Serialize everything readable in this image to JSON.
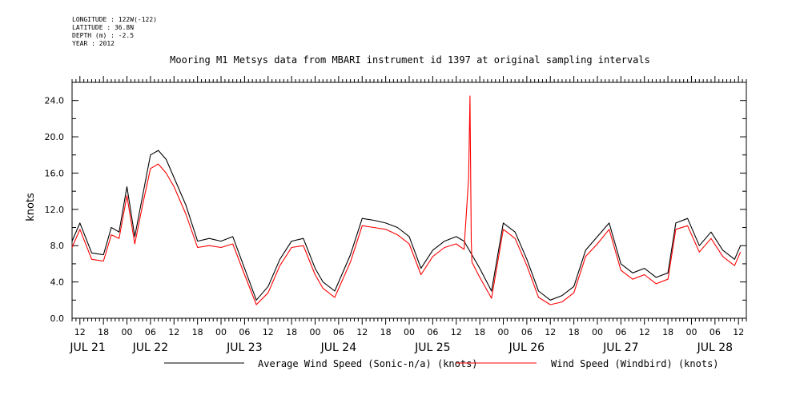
{
  "meta": {
    "longitude": "LONGITUDE : 122W(-122)",
    "latitude": "LATITUDE : 36.8N",
    "depth": "DEPTH (m) : -2.5",
    "year": "YEAR : 2012"
  },
  "colors": {
    "average": "#000000",
    "windbird": "#ff0000"
  },
  "chart_data": {
    "type": "line",
    "title": "Mooring M1 Metsys data from MBARI instrument id 1397 at original sampling intervals",
    "ylabel": "knots",
    "xlabel": "",
    "ylim": [
      0,
      26
    ],
    "xlim": [
      "2012-07-21T10:00",
      "2012-07-28T14:00"
    ],
    "y_ticks": [
      "0.0",
      "4.0",
      "8.0",
      "12.0",
      "16.0",
      "20.0",
      "24.0"
    ],
    "hour_ticks": [
      "12",
      "18",
      "00",
      "06",
      "12",
      "18",
      "00",
      "06",
      "12",
      "18",
      "00",
      "06",
      "12",
      "18",
      "00",
      "06",
      "12",
      "18",
      "00",
      "06",
      "12",
      "18",
      "00",
      "06",
      "12",
      "18",
      "00",
      "06",
      "12"
    ],
    "day_labels": [
      "JUL 21",
      "JUL 22",
      "JUL 23",
      "JUL 24",
      "JUL 25",
      "JUL 26",
      "JUL 27",
      "JUL 28"
    ],
    "grid": false,
    "legend": "bottom",
    "series": [
      {
        "name": "Average Wind Speed (Sonic-n/a) (knots)",
        "x": [
          "2012-07-21T10:00",
          "2012-07-21T12:00",
          "2012-07-21T15:00",
          "2012-07-21T18:00",
          "2012-07-21T20:00",
          "2012-07-21T22:00",
          "2012-07-22T00:00",
          "2012-07-22T02:00",
          "2012-07-22T04:00",
          "2012-07-22T06:00",
          "2012-07-22T08:00",
          "2012-07-22T10:00",
          "2012-07-22T12:00",
          "2012-07-22T15:00",
          "2012-07-22T18:00",
          "2012-07-22T21:00",
          "2012-07-23T00:00",
          "2012-07-23T03:00",
          "2012-07-23T06:00",
          "2012-07-23T09:00",
          "2012-07-23T12:00",
          "2012-07-23T15:00",
          "2012-07-23T18:00",
          "2012-07-23T21:00",
          "2012-07-24T00:00",
          "2012-07-24T02:00",
          "2012-07-24T05:00",
          "2012-07-24T09:00",
          "2012-07-24T12:00",
          "2012-07-24T15:00",
          "2012-07-24T18:00",
          "2012-07-24T21:00",
          "2012-07-25T00:00",
          "2012-07-25T03:00",
          "2012-07-25T06:00",
          "2012-07-25T09:00",
          "2012-07-25T12:00",
          "2012-07-25T14:00",
          "2012-07-25T16:00",
          "2012-07-25T18:00",
          "2012-07-25T21:00",
          "2012-07-26T00:00",
          "2012-07-26T03:00",
          "2012-07-26T06:00",
          "2012-07-26T09:00",
          "2012-07-26T12:00",
          "2012-07-26T15:00",
          "2012-07-26T18:00",
          "2012-07-26T21:00",
          "2012-07-27T00:00",
          "2012-07-27T03:00",
          "2012-07-27T06:00",
          "2012-07-27T09:00",
          "2012-07-27T12:00",
          "2012-07-27T15:00",
          "2012-07-27T18:00",
          "2012-07-27T20:00",
          "2012-07-27T23:00",
          "2012-07-28T02:00",
          "2012-07-28T05:00",
          "2012-07-28T08:00",
          "2012-07-28T11:00",
          "2012-07-28T12:30"
        ],
        "values": [
          8.5,
          10.5,
          7.2,
          7.0,
          10.0,
          9.5,
          14.5,
          9.0,
          13.5,
          18.0,
          18.5,
          17.5,
          15.5,
          12.5,
          8.5,
          8.8,
          8.5,
          9.0,
          5.5,
          2.0,
          3.5,
          6.5,
          8.5,
          8.8,
          5.5,
          4.0,
          3.0,
          7.0,
          11.0,
          10.8,
          10.5,
          10.0,
          9.0,
          5.5,
          7.5,
          8.5,
          9.0,
          8.5,
          7.0,
          5.5,
          3.0,
          10.5,
          9.5,
          6.5,
          3.0,
          2.0,
          2.5,
          3.5,
          7.5,
          9.0,
          10.5,
          6.0,
          5.0,
          5.5,
          4.5,
          5.0,
          10.5,
          11.0,
          8.0,
          9.5,
          7.5,
          6.5,
          8.0
        ]
      },
      {
        "name": "Wind Speed (Windbird) (knots)",
        "x": [
          "2012-07-21T10:00",
          "2012-07-21T12:00",
          "2012-07-21T15:00",
          "2012-07-21T18:00",
          "2012-07-21T20:00",
          "2012-07-21T22:00",
          "2012-07-22T00:00",
          "2012-07-22T02:00",
          "2012-07-22T04:00",
          "2012-07-22T06:00",
          "2012-07-22T08:00",
          "2012-07-22T10:00",
          "2012-07-22T12:00",
          "2012-07-22T15:00",
          "2012-07-22T18:00",
          "2012-07-22T21:00",
          "2012-07-23T00:00",
          "2012-07-23T03:00",
          "2012-07-23T06:00",
          "2012-07-23T09:00",
          "2012-07-23T12:00",
          "2012-07-23T15:00",
          "2012-07-23T18:00",
          "2012-07-23T21:00",
          "2012-07-24T00:00",
          "2012-07-24T02:00",
          "2012-07-24T05:00",
          "2012-07-24T09:00",
          "2012-07-24T12:00",
          "2012-07-24T15:00",
          "2012-07-24T18:00",
          "2012-07-24T21:00",
          "2012-07-25T00:00",
          "2012-07-25T03:00",
          "2012-07-25T06:00",
          "2012-07-25T09:00",
          "2012-07-25T12:00",
          "2012-07-25T14:00",
          "2012-07-25T15:10",
          "2012-07-25T15:30",
          "2012-07-25T15:50",
          "2012-07-25T16:00",
          "2012-07-25T18:00",
          "2012-07-25T21:00",
          "2012-07-26T00:00",
          "2012-07-26T03:00",
          "2012-07-26T06:00",
          "2012-07-26T09:00",
          "2012-07-26T12:00",
          "2012-07-26T15:00",
          "2012-07-26T18:00",
          "2012-07-26T21:00",
          "2012-07-27T00:00",
          "2012-07-27T03:00",
          "2012-07-27T06:00",
          "2012-07-27T09:00",
          "2012-07-27T12:00",
          "2012-07-27T15:00",
          "2012-07-27T18:00",
          "2012-07-27T20:00",
          "2012-07-27T23:00",
          "2012-07-28T02:00",
          "2012-07-28T05:00",
          "2012-07-28T08:00",
          "2012-07-28T11:00",
          "2012-07-28T12:30"
        ],
        "values": [
          7.8,
          9.8,
          6.5,
          6.3,
          9.2,
          8.8,
          13.5,
          8.2,
          12.5,
          16.5,
          17.0,
          16.0,
          14.5,
          11.5,
          7.8,
          8.0,
          7.8,
          8.2,
          4.8,
          1.5,
          2.8,
          5.8,
          7.8,
          8.0,
          4.8,
          3.3,
          2.3,
          6.2,
          10.2,
          10.0,
          9.8,
          9.2,
          8.2,
          4.8,
          6.8,
          7.8,
          8.2,
          7.6,
          15.5,
          24.5,
          8.5,
          6.2,
          4.5,
          2.2,
          9.8,
          8.8,
          5.8,
          2.3,
          1.5,
          1.8,
          2.8,
          6.8,
          8.2,
          9.8,
          5.3,
          4.3,
          4.8,
          3.8,
          4.3,
          9.8,
          10.2,
          7.3,
          8.8,
          6.8,
          5.8,
          7.3
        ]
      }
    ]
  }
}
